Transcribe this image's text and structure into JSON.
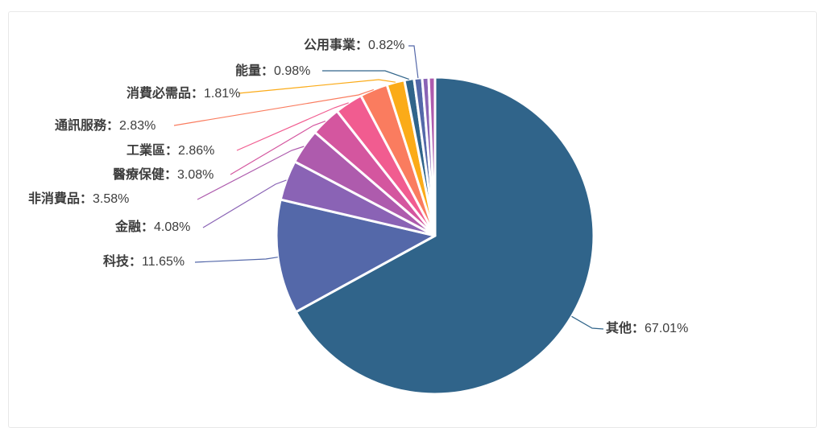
{
  "chart_data": {
    "type": "pie",
    "title": "",
    "legend": "none",
    "label_format": "{name}：{value}%",
    "separator": "：",
    "start_angle": 90,
    "clockwise": true,
    "slices": [
      {
        "key": "others",
        "label": "其他",
        "value": 67.01,
        "pct_text": "67.01%",
        "color": "#30648a"
      },
      {
        "key": "technology",
        "label": "科技",
        "value": 11.65,
        "pct_text": "11.65%",
        "color": "#5468a9"
      },
      {
        "key": "financials",
        "label": "金融",
        "value": 4.08,
        "pct_text": "4.08%",
        "color": "#8a63b5"
      },
      {
        "key": "consumer-discretionary",
        "label": "非消費品",
        "value": 3.58,
        "pct_text": "3.58%",
        "color": "#ae5bad"
      },
      {
        "key": "healthcare",
        "label": "醫療保健",
        "value": 3.08,
        "pct_text": "3.08%",
        "color": "#d4569f"
      },
      {
        "key": "industrials",
        "label": "工業區",
        "value": 2.86,
        "pct_text": "2.86%",
        "color": "#f15c90"
      },
      {
        "key": "communication-services",
        "label": "通訊服務",
        "value": 2.83,
        "pct_text": "2.83%",
        "color": "#fa7c5f"
      },
      {
        "key": "consumer-staples",
        "label": "消費必需品",
        "value": 1.81,
        "pct_text": "1.81%",
        "color": "#fbab18"
      },
      {
        "key": "energy",
        "label": "能量",
        "value": 0.98,
        "pct_text": "0.98%",
        "color": "#30648a"
      },
      {
        "key": "utilities",
        "label": "公用事業",
        "value": 0.82,
        "pct_text": "0.82%",
        "color": "#5468a9"
      },
      {
        "key": "unlabeled-1",
        "label": "",
        "value": 0.65,
        "pct_text": "",
        "color": "#8a63b5"
      },
      {
        "key": "unlabeled-2",
        "label": "",
        "value": 0.65,
        "pct_text": "",
        "color": "#ae5bad"
      }
    ]
  }
}
